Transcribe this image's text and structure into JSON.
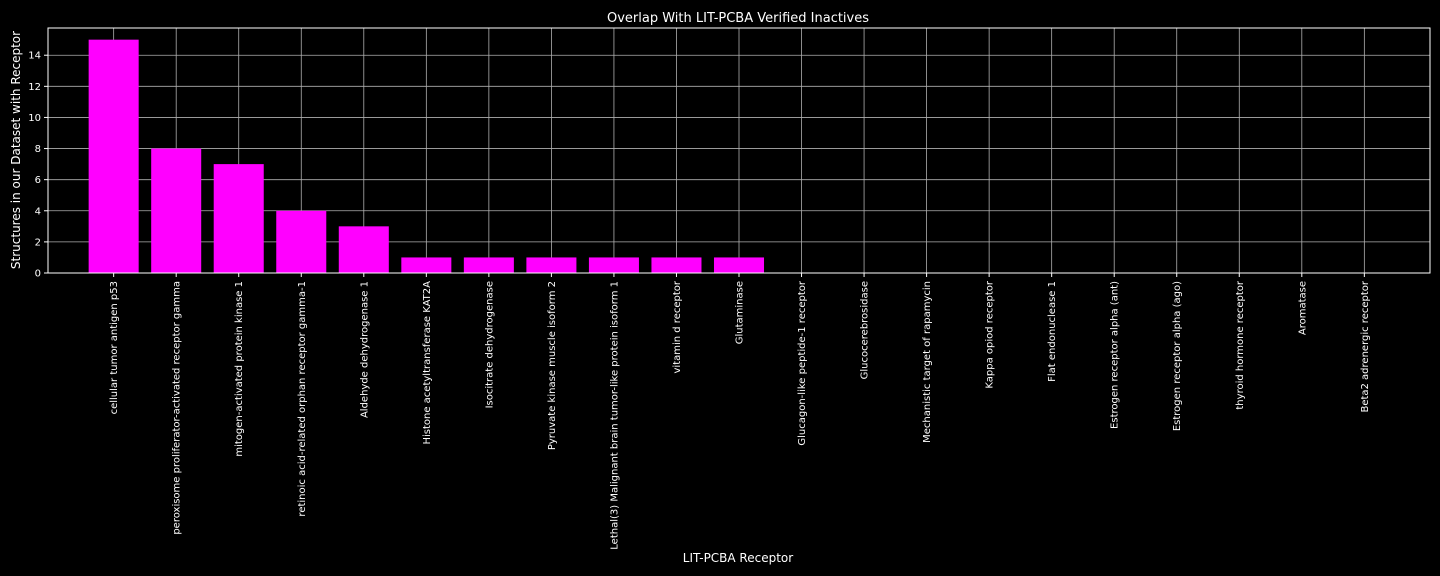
{
  "chart_data": {
    "type": "bar",
    "title": "Overlap With LIT-PCBA Verified Inactives",
    "xlabel": "LIT-PCBA Receptor",
    "ylabel": "Structures in our Dataset with Receptor",
    "categories": [
      "cellular tumor antigen p53",
      "peroxisome proliferator-activated receptor gamma",
      "mitogen-activated protein kinase 1",
      "retinoic acid-related orphan receptor gamma-1",
      "Aldehyde dehydrogenase 1",
      "Histone acetyltransferase KAT2A",
      "Isocitrate dehydrogenase",
      "Pyruvate kinase muscle isoform 2",
      "Lethal(3) Malignant brain tumor-like protein isoform 1",
      "vitamin d receptor",
      "Glutaminase",
      "Glucagon-like peptide-1 receptor",
      "Glucocerebrosidase",
      "Mechanistic target of rapamycin",
      "Kappa opiod receptor",
      "Flat endonuclease 1",
      "Estrogen receptor alpha (ant)",
      "Estrogen receptor alpha (ago)",
      "thyroid hormone receptor",
      "Aromatase",
      "Beta2 adrenergic receptor"
    ],
    "values": [
      15,
      8,
      7,
      4,
      3,
      1,
      1,
      1,
      1,
      1,
      1,
      0,
      0,
      0,
      0,
      0,
      0,
      0,
      0,
      0,
      0
    ],
    "yticks": [
      0,
      2,
      4,
      6,
      8,
      10,
      12,
      14
    ],
    "ylim": [
      0,
      15.75
    ],
    "grid": true,
    "bar_color": "#ff00ff",
    "background": "#000000",
    "grid_color": "#b0b0b0",
    "text_color": "#ffffff"
  }
}
